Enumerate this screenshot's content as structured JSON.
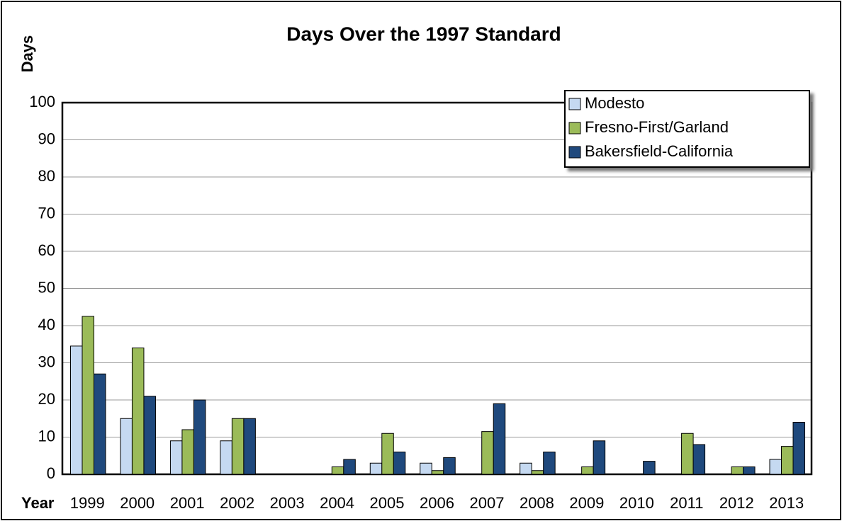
{
  "chart_data": {
    "type": "bar",
    "title": "Days Over the 1997 Standard",
    "y_label": "Days",
    "x_label": "Year",
    "categories": [
      "1999",
      "2000",
      "2001",
      "2002",
      "2003",
      "2004",
      "2005",
      "2006",
      "2007",
      "2008",
      "2009",
      "2010",
      "2011",
      "2012",
      "2013"
    ],
    "series": [
      {
        "name": "Modesto",
        "color": "#c5d9f1",
        "values": [
          34.5,
          15,
          9,
          9,
          0,
          0,
          3,
          3,
          0,
          3,
          0,
          0,
          0,
          0,
          4
        ]
      },
      {
        "name": "Fresno-First/Garland",
        "color": "#9bbb59",
        "values": [
          42.5,
          34,
          12,
          15,
          0,
          2,
          11,
          1,
          11.5,
          1,
          2,
          0,
          11,
          2,
          7.5
        ]
      },
      {
        "name": "Bakersfield-California",
        "color": "#1f497d",
        "values": [
          27,
          21,
          20,
          15,
          0,
          4,
          6,
          4.5,
          19,
          6,
          9,
          3.5,
          8,
          2,
          14
        ]
      }
    ],
    "ylim": [
      0,
      100
    ],
    "yticks": [
      0,
      10,
      20,
      30,
      40,
      50,
      60,
      70,
      80,
      90,
      100
    ],
    "grid": true,
    "legend": "upper right"
  }
}
